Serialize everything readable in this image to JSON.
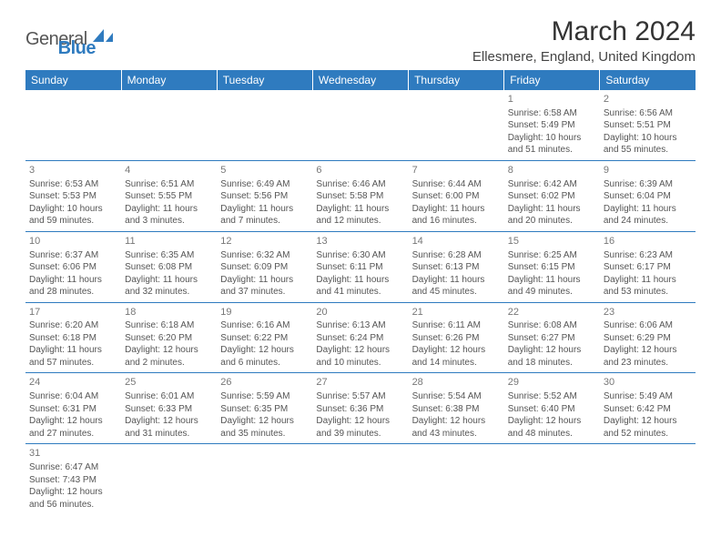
{
  "logo": {
    "text_general": "General",
    "text_blue": "Blue",
    "sail_color": "#2f7bbf"
  },
  "header": {
    "month_title": "March 2024",
    "location": "Ellesmere, England, United Kingdom"
  },
  "day_headers": [
    "Sunday",
    "Monday",
    "Tuesday",
    "Wednesday",
    "Thursday",
    "Friday",
    "Saturday"
  ],
  "colors": {
    "header_bg": "#2f7bbf",
    "header_fg": "#ffffff",
    "row_border": "#2f7bbf",
    "text": "#555555"
  },
  "weeks": [
    [
      null,
      null,
      null,
      null,
      null,
      {
        "day": "1",
        "sunrise": "Sunrise: 6:58 AM",
        "sunset": "Sunset: 5:49 PM",
        "daylight": "Daylight: 10 hours and 51 minutes."
      },
      {
        "day": "2",
        "sunrise": "Sunrise: 6:56 AM",
        "sunset": "Sunset: 5:51 PM",
        "daylight": "Daylight: 10 hours and 55 minutes."
      }
    ],
    [
      {
        "day": "3",
        "sunrise": "Sunrise: 6:53 AM",
        "sunset": "Sunset: 5:53 PM",
        "daylight": "Daylight: 10 hours and 59 minutes."
      },
      {
        "day": "4",
        "sunrise": "Sunrise: 6:51 AM",
        "sunset": "Sunset: 5:55 PM",
        "daylight": "Daylight: 11 hours and 3 minutes."
      },
      {
        "day": "5",
        "sunrise": "Sunrise: 6:49 AM",
        "sunset": "Sunset: 5:56 PM",
        "daylight": "Daylight: 11 hours and 7 minutes."
      },
      {
        "day": "6",
        "sunrise": "Sunrise: 6:46 AM",
        "sunset": "Sunset: 5:58 PM",
        "daylight": "Daylight: 11 hours and 12 minutes."
      },
      {
        "day": "7",
        "sunrise": "Sunrise: 6:44 AM",
        "sunset": "Sunset: 6:00 PM",
        "daylight": "Daylight: 11 hours and 16 minutes."
      },
      {
        "day": "8",
        "sunrise": "Sunrise: 6:42 AM",
        "sunset": "Sunset: 6:02 PM",
        "daylight": "Daylight: 11 hours and 20 minutes."
      },
      {
        "day": "9",
        "sunrise": "Sunrise: 6:39 AM",
        "sunset": "Sunset: 6:04 PM",
        "daylight": "Daylight: 11 hours and 24 minutes."
      }
    ],
    [
      {
        "day": "10",
        "sunrise": "Sunrise: 6:37 AM",
        "sunset": "Sunset: 6:06 PM",
        "daylight": "Daylight: 11 hours and 28 minutes."
      },
      {
        "day": "11",
        "sunrise": "Sunrise: 6:35 AM",
        "sunset": "Sunset: 6:08 PM",
        "daylight": "Daylight: 11 hours and 32 minutes."
      },
      {
        "day": "12",
        "sunrise": "Sunrise: 6:32 AM",
        "sunset": "Sunset: 6:09 PM",
        "daylight": "Daylight: 11 hours and 37 minutes."
      },
      {
        "day": "13",
        "sunrise": "Sunrise: 6:30 AM",
        "sunset": "Sunset: 6:11 PM",
        "daylight": "Daylight: 11 hours and 41 minutes."
      },
      {
        "day": "14",
        "sunrise": "Sunrise: 6:28 AM",
        "sunset": "Sunset: 6:13 PM",
        "daylight": "Daylight: 11 hours and 45 minutes."
      },
      {
        "day": "15",
        "sunrise": "Sunrise: 6:25 AM",
        "sunset": "Sunset: 6:15 PM",
        "daylight": "Daylight: 11 hours and 49 minutes."
      },
      {
        "day": "16",
        "sunrise": "Sunrise: 6:23 AM",
        "sunset": "Sunset: 6:17 PM",
        "daylight": "Daylight: 11 hours and 53 minutes."
      }
    ],
    [
      {
        "day": "17",
        "sunrise": "Sunrise: 6:20 AM",
        "sunset": "Sunset: 6:18 PM",
        "daylight": "Daylight: 11 hours and 57 minutes."
      },
      {
        "day": "18",
        "sunrise": "Sunrise: 6:18 AM",
        "sunset": "Sunset: 6:20 PM",
        "daylight": "Daylight: 12 hours and 2 minutes."
      },
      {
        "day": "19",
        "sunrise": "Sunrise: 6:16 AM",
        "sunset": "Sunset: 6:22 PM",
        "daylight": "Daylight: 12 hours and 6 minutes."
      },
      {
        "day": "20",
        "sunrise": "Sunrise: 6:13 AM",
        "sunset": "Sunset: 6:24 PM",
        "daylight": "Daylight: 12 hours and 10 minutes."
      },
      {
        "day": "21",
        "sunrise": "Sunrise: 6:11 AM",
        "sunset": "Sunset: 6:26 PM",
        "daylight": "Daylight: 12 hours and 14 minutes."
      },
      {
        "day": "22",
        "sunrise": "Sunrise: 6:08 AM",
        "sunset": "Sunset: 6:27 PM",
        "daylight": "Daylight: 12 hours and 18 minutes."
      },
      {
        "day": "23",
        "sunrise": "Sunrise: 6:06 AM",
        "sunset": "Sunset: 6:29 PM",
        "daylight": "Daylight: 12 hours and 23 minutes."
      }
    ],
    [
      {
        "day": "24",
        "sunrise": "Sunrise: 6:04 AM",
        "sunset": "Sunset: 6:31 PM",
        "daylight": "Daylight: 12 hours and 27 minutes."
      },
      {
        "day": "25",
        "sunrise": "Sunrise: 6:01 AM",
        "sunset": "Sunset: 6:33 PM",
        "daylight": "Daylight: 12 hours and 31 minutes."
      },
      {
        "day": "26",
        "sunrise": "Sunrise: 5:59 AM",
        "sunset": "Sunset: 6:35 PM",
        "daylight": "Daylight: 12 hours and 35 minutes."
      },
      {
        "day": "27",
        "sunrise": "Sunrise: 5:57 AM",
        "sunset": "Sunset: 6:36 PM",
        "daylight": "Daylight: 12 hours and 39 minutes."
      },
      {
        "day": "28",
        "sunrise": "Sunrise: 5:54 AM",
        "sunset": "Sunset: 6:38 PM",
        "daylight": "Daylight: 12 hours and 43 minutes."
      },
      {
        "day": "29",
        "sunrise": "Sunrise: 5:52 AM",
        "sunset": "Sunset: 6:40 PM",
        "daylight": "Daylight: 12 hours and 48 minutes."
      },
      {
        "day": "30",
        "sunrise": "Sunrise: 5:49 AM",
        "sunset": "Sunset: 6:42 PM",
        "daylight": "Daylight: 12 hours and 52 minutes."
      }
    ],
    [
      {
        "day": "31",
        "sunrise": "Sunrise: 6:47 AM",
        "sunset": "Sunset: 7:43 PM",
        "daylight": "Daylight: 12 hours and 56 minutes."
      },
      null,
      null,
      null,
      null,
      null,
      null
    ]
  ]
}
